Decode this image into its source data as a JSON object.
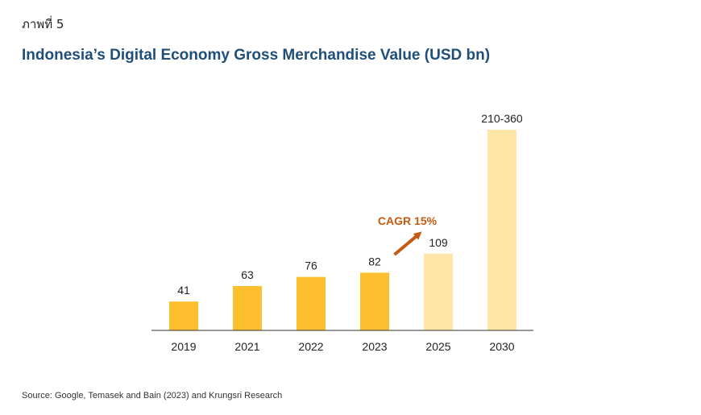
{
  "figure_label": "ภาพที่ 5",
  "source": "Source: Google, Temasek and Bain (2023) and Krungsri Research",
  "chart_data": {
    "type": "bar",
    "title": "Indonesia’s Digital Economy Gross Merchandise Value (USD bn)",
    "xlabel": "",
    "ylabel": "",
    "categories": [
      "2019",
      "2021",
      "2022",
      "2023",
      "2025",
      "2030"
    ],
    "values": [
      41,
      63,
      76,
      82,
      109,
      285
    ],
    "value_ranges": [
      null,
      null,
      null,
      null,
      null,
      [
        210,
        360
      ]
    ],
    "data_labels": [
      "41",
      "63",
      "76",
      "82",
      "109",
      "210-360"
    ],
    "projected": [
      false,
      false,
      false,
      false,
      true,
      true
    ],
    "ylim": [
      0,
      300
    ],
    "grid": false,
    "legend": "none",
    "colors": {
      "actual": "#fdbf2d",
      "projected": "#ffe6a6",
      "axis": "#333333",
      "cagr": "#c55a11"
    },
    "annotation": {
      "text": "CAGR 15%",
      "from_category": "2023",
      "to_category": "2025"
    }
  }
}
